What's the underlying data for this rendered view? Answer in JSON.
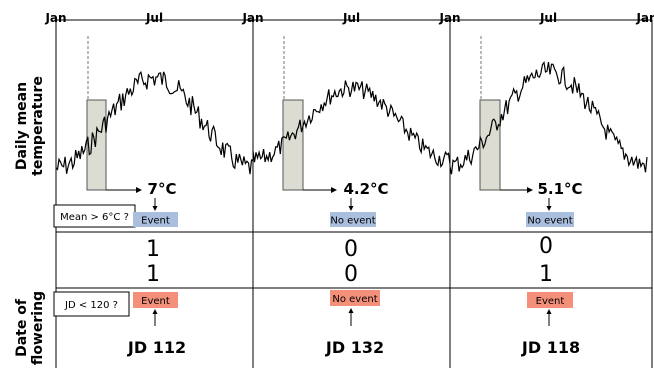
{
  "axis": {
    "months": [
      {
        "label": "Jan",
        "pos": 0
      },
      {
        "label": "Jul",
        "pos": 0.5
      },
      {
        "label": "Jan",
        "pos": 1
      },
      {
        "label": "Jul",
        "pos": 1.5
      },
      {
        "label": "Jan",
        "pos": 2
      },
      {
        "label": "Jul",
        "pos": 2.5
      },
      {
        "label": "Jan",
        "pos": 3
      }
    ]
  },
  "labels": {
    "temperature_line1": "Daily mean",
    "temperature_line2": "temperature",
    "flowering_line1": "Date of",
    "flowering_line2": "flowering"
  },
  "criteria": {
    "temperature": "Mean > 6°C ?",
    "flowering": "JD < 120 ?"
  },
  "colors": {
    "temp_event": "#a9bfdd",
    "flower_event": "#f4907a",
    "window_fill": "#dcdcd2"
  },
  "years": [
    {
      "mean": "7°C",
      "temp_event": "Event",
      "code_temp": "1",
      "code_flower": "1",
      "flower_event": "Event",
      "jd": "JD 112"
    },
    {
      "mean": "4.2°C",
      "temp_event": "No event",
      "code_temp": "0",
      "code_flower": "0",
      "flower_event": "No event",
      "jd": "JD 132"
    },
    {
      "mean": "5.1°C",
      "temp_event": "No event",
      "code_temp": "0",
      "code_flower": "1",
      "flower_event": "Event",
      "jd": "JD 118"
    }
  ]
}
